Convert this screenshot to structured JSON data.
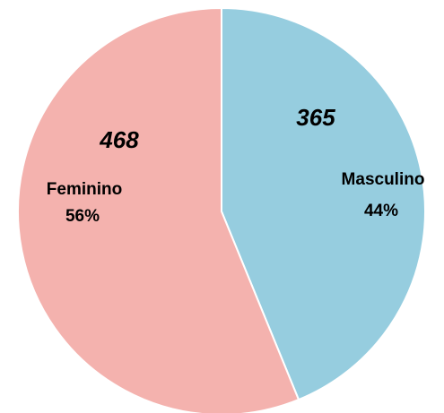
{
  "chart_data": {
    "type": "pie",
    "categories": [
      "Masculino",
      "Feminino"
    ],
    "values": [
      365,
      468
    ],
    "value_labels": [
      "365",
      "468"
    ],
    "percent_labels": [
      "44%",
      "56%"
    ],
    "colors": [
      "#96cddf",
      "#f4b2ae"
    ]
  }
}
